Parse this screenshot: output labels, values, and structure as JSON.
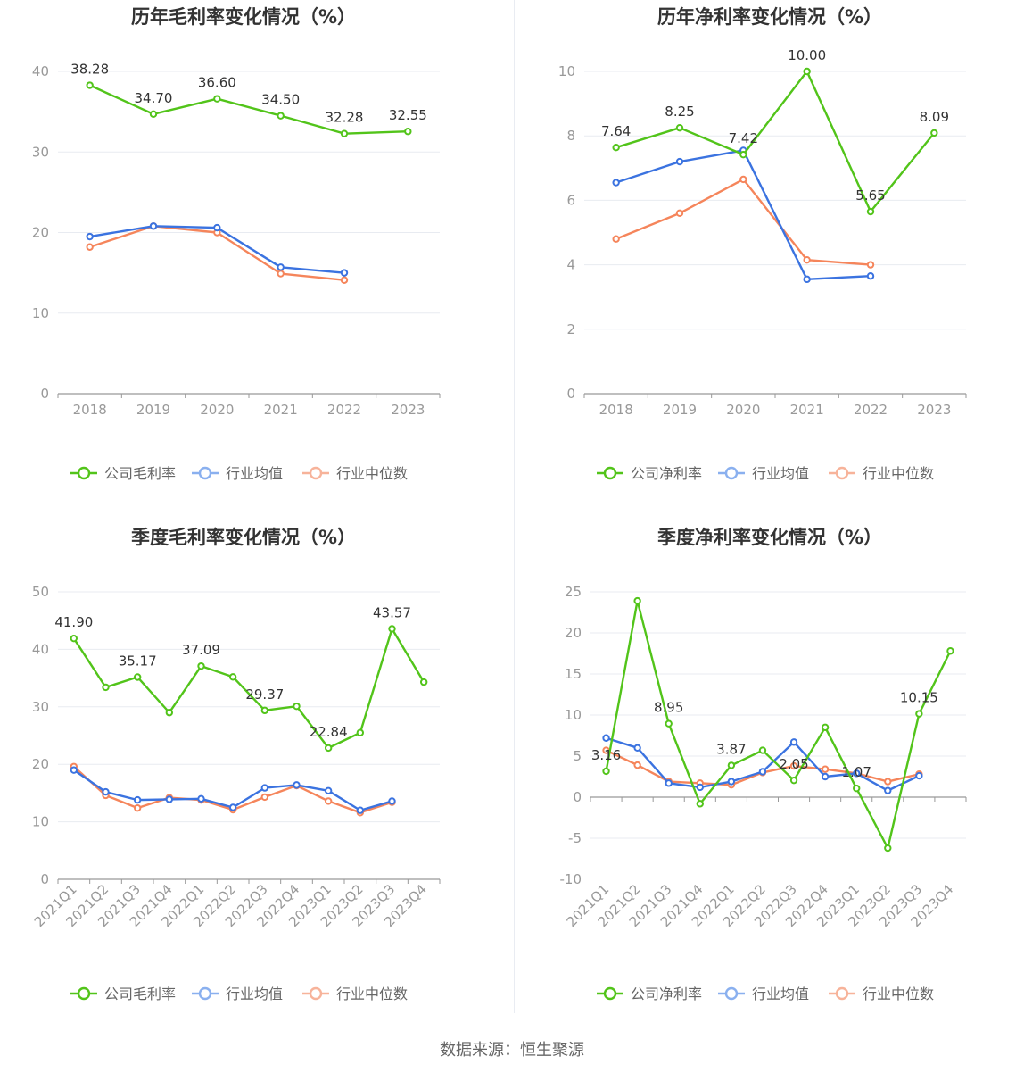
{
  "source_text": "数据来源：恒生聚源",
  "colors": {
    "company": "#52c41a",
    "avg": "#3b73e0",
    "median": "#f5855b",
    "grid": "#e8ebf1",
    "axis": "#999999"
  },
  "chart_data": [
    {
      "type": "line",
      "title": "历年毛利率变化情况（%）",
      "categories": [
        "2018",
        "2019",
        "2020",
        "2021",
        "2022",
        "2023"
      ],
      "ylim": [
        0,
        40
      ],
      "yticks": [
        0,
        10,
        20,
        30,
        40
      ],
      "xlabel": "",
      "ylabel": "",
      "grid": true,
      "legend_position": "bottom-center",
      "series": [
        {
          "name": "公司毛利率",
          "values": [
            38.28,
            34.7,
            36.6,
            34.5,
            32.28,
            32.55
          ]
        },
        {
          "name": "行业均值",
          "values": [
            19.5,
            20.8,
            20.6,
            15.7,
            15.0,
            null
          ]
        },
        {
          "name": "行业中位数",
          "values": [
            18.2,
            20.8,
            20.0,
            14.9,
            14.1,
            null
          ]
        }
      ],
      "data_labels": [
        "38.28",
        "34.70",
        "36.60",
        "34.50",
        "32.28",
        "32.55"
      ]
    },
    {
      "type": "line",
      "title": "历年净利率变化情况（%）",
      "categories": [
        "2018",
        "2019",
        "2020",
        "2021",
        "2022",
        "2023"
      ],
      "ylim": [
        0,
        10
      ],
      "yticks": [
        0,
        2,
        4,
        6,
        8,
        10
      ],
      "xlabel": "",
      "ylabel": "",
      "grid": true,
      "legend_position": "bottom-center",
      "series": [
        {
          "name": "公司净利率",
          "values": [
            7.64,
            8.25,
            7.42,
            10.0,
            5.65,
            8.09
          ]
        },
        {
          "name": "行业均值",
          "values": [
            6.55,
            7.2,
            7.55,
            3.55,
            3.65,
            null
          ]
        },
        {
          "name": "行业中位数",
          "values": [
            4.8,
            5.6,
            6.65,
            4.15,
            4.0,
            null
          ]
        }
      ],
      "data_labels": [
        "7.64",
        "8.25",
        "7.42",
        "10.00",
        "5.65",
        "8.09"
      ]
    },
    {
      "type": "line",
      "title": "季度毛利率变化情况（%）",
      "categories": [
        "2021Q1",
        "2021Q2",
        "2021Q3",
        "2021Q4",
        "2022Q1",
        "2022Q2",
        "2022Q3",
        "2022Q4",
        "2023Q1",
        "2023Q2",
        "2023Q3",
        "2023Q4"
      ],
      "ylim": [
        0,
        50
      ],
      "yticks": [
        0,
        10,
        20,
        30,
        40,
        50
      ],
      "xlabel": "",
      "ylabel": "",
      "grid": true,
      "legend_position": "bottom-center",
      "series": [
        {
          "name": "公司毛利率",
          "values": [
            41.9,
            33.4,
            35.17,
            29.0,
            37.09,
            35.2,
            29.37,
            30.1,
            22.84,
            25.5,
            43.57,
            34.3
          ]
        },
        {
          "name": "行业均值",
          "values": [
            19.0,
            15.2,
            13.8,
            13.9,
            14.0,
            12.5,
            15.9,
            16.4,
            15.4,
            12.0,
            13.6,
            null
          ]
        },
        {
          "name": "行业中位数",
          "values": [
            19.6,
            14.6,
            12.4,
            14.2,
            13.8,
            12.1,
            14.3,
            16.3,
            13.6,
            11.6,
            13.4,
            null
          ]
        }
      ],
      "data_labels": [
        "41.90",
        "",
        "35.17",
        "",
        "37.09",
        "",
        "29.37",
        "",
        "22.84",
        "",
        "43.57",
        ""
      ]
    },
    {
      "type": "line",
      "title": "季度净利率变化情况（%）",
      "categories": [
        "2021Q1",
        "2021Q2",
        "2021Q3",
        "2021Q4",
        "2022Q1",
        "2022Q2",
        "2022Q3",
        "2022Q4",
        "2023Q1",
        "2023Q2",
        "2023Q3",
        "2023Q4"
      ],
      "ylim": [
        -10,
        25
      ],
      "yticks": [
        -10,
        -5,
        0,
        5,
        10,
        15,
        20,
        25
      ],
      "xlabel": "",
      "ylabel": "",
      "grid": true,
      "legend_position": "bottom-center",
      "series": [
        {
          "name": "公司净利率",
          "values": [
            3.16,
            23.9,
            8.95,
            -0.8,
            3.87,
            5.7,
            2.05,
            8.5,
            1.07,
            -6.2,
            10.15,
            17.8
          ]
        },
        {
          "name": "行业均值",
          "values": [
            7.2,
            6.0,
            1.7,
            1.2,
            1.9,
            3.1,
            6.7,
            2.5,
            2.9,
            0.8,
            2.6,
            null
          ]
        },
        {
          "name": "行业中位数",
          "values": [
            5.7,
            3.9,
            1.9,
            1.7,
            1.5,
            3.0,
            3.8,
            3.4,
            2.9,
            1.9,
            2.8,
            null
          ]
        }
      ],
      "data_labels": [
        "3.16",
        "",
        "8.95",
        "",
        "3.87",
        "",
        "2.05",
        "",
        "1.07",
        "",
        "10.15",
        ""
      ]
    }
  ]
}
